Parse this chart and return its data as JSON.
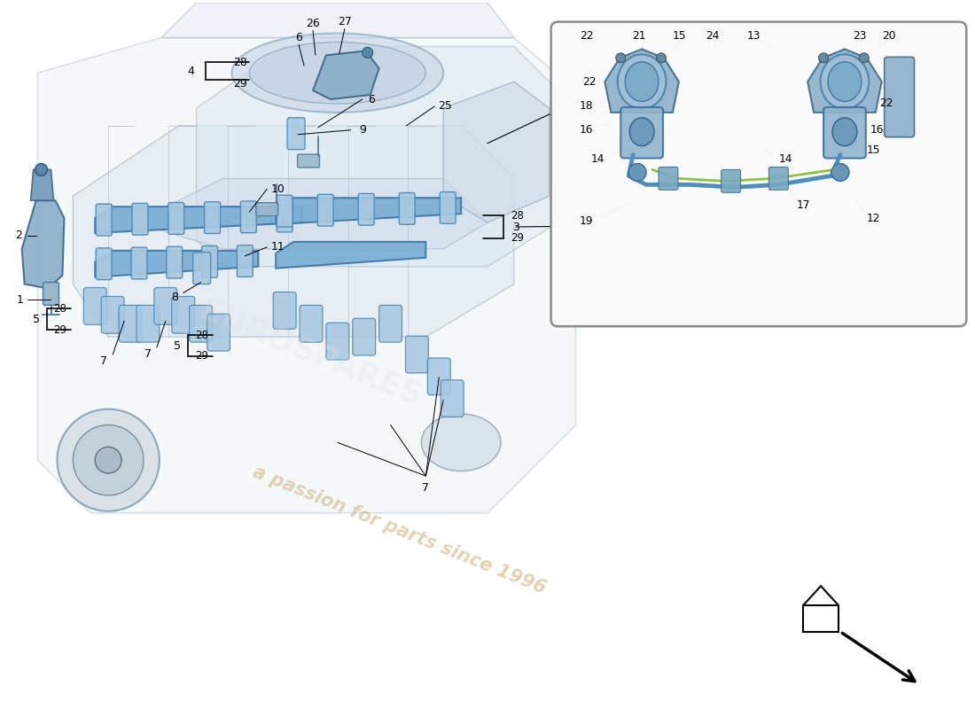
{
  "bg_color": "#ffffff",
  "watermark_text": "a passion for parts since 1996",
  "watermark_color": "#c8a96e",
  "watermark_alpha": 0.5,
  "engine_line_color": "#b0b8c0",
  "engine_fill": "#e8eef2",
  "blue_part_fill": "#7aaed4",
  "blue_part_stroke": "#3a78aa",
  "blue_light_fill": "#a8c8e0",
  "blue_light_stroke": "#4a88b8",
  "dark_part_fill": "#5888a8",
  "dark_part_stroke": "#2a5878",
  "label_color": "#000000",
  "label_fontsize": 9.0,
  "leader_lw": 0.8,
  "inset_box_color": "#666666",
  "arrow_nav_color": "#000000"
}
